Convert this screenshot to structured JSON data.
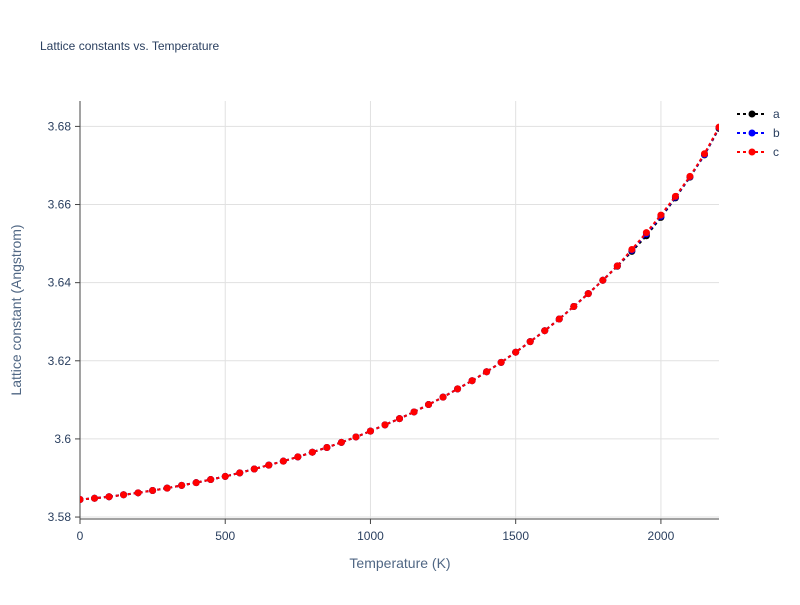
{
  "chart_data": {
    "type": "line",
    "title": "Lattice constants vs. Temperature",
    "xlabel": "Temperature (K)",
    "ylabel": "Lattice constant (Angstrom)",
    "xlim": [
      0,
      2200
    ],
    "ylim": [
      3.5795,
      3.6865
    ],
    "xticks": [
      0,
      500,
      1000,
      1500,
      2000
    ],
    "xtick_labels": [
      "0",
      "500",
      "1000",
      "1500",
      "2000"
    ],
    "yticks": [
      3.58,
      3.6,
      3.62,
      3.64,
      3.66,
      3.68
    ],
    "ytick_labels": [
      "3.58",
      "3.6",
      "3.62",
      "3.64",
      "3.66",
      "3.68"
    ],
    "grid": true,
    "legend_position": "top-right",
    "x": [
      0,
      50,
      100,
      150,
      200,
      250,
      300,
      350,
      400,
      450,
      500,
      550,
      600,
      650,
      700,
      750,
      800,
      850,
      900,
      950,
      1000,
      1050,
      1100,
      1150,
      1200,
      1250,
      1300,
      1350,
      1400,
      1450,
      1500,
      1550,
      1600,
      1650,
      1700,
      1750,
      1800,
      1850,
      1900,
      1950,
      2000,
      2050,
      2100,
      2150,
      2200
    ],
    "series": [
      {
        "name": "a",
        "color": "#000000",
        "values": [
          3.5845,
          3.5848,
          3.5852,
          3.5857,
          3.5862,
          3.5868,
          3.5874,
          3.5881,
          3.5888,
          3.5896,
          3.5904,
          3.5913,
          3.5923,
          3.5933,
          3.5943,
          3.5954,
          3.5966,
          3.5978,
          3.5991,
          3.6005,
          3.602,
          3.6036,
          3.6052,
          3.6069,
          3.6088,
          3.6107,
          3.6128,
          3.6149,
          3.6172,
          3.6196,
          3.6222,
          3.6249,
          3.6277,
          3.6307,
          3.6339,
          3.6372,
          3.6406,
          3.6442,
          3.648,
          3.652,
          3.6567,
          3.6617,
          3.667,
          3.6727,
          3.6795
        ]
      },
      {
        "name": "b",
        "color": "#0000ff",
        "values": [
          3.5845,
          3.5848,
          3.5852,
          3.5857,
          3.5862,
          3.5868,
          3.5874,
          3.5881,
          3.5888,
          3.5896,
          3.5904,
          3.5913,
          3.5923,
          3.5933,
          3.5943,
          3.5954,
          3.5966,
          3.5978,
          3.5991,
          3.6005,
          3.602,
          3.6036,
          3.6052,
          3.6069,
          3.6088,
          3.6107,
          3.6128,
          3.6149,
          3.6172,
          3.6196,
          3.6222,
          3.6249,
          3.6277,
          3.6307,
          3.6339,
          3.6372,
          3.6406,
          3.6443,
          3.6483,
          3.6525,
          3.657,
          3.6619,
          3.6671,
          3.6728,
          3.6797
        ]
      },
      {
        "name": "c",
        "color": "#ff0000",
        "values": [
          3.5845,
          3.5848,
          3.5852,
          3.5857,
          3.5862,
          3.5868,
          3.5874,
          3.5881,
          3.5888,
          3.5896,
          3.5904,
          3.5913,
          3.5923,
          3.5933,
          3.5943,
          3.5954,
          3.5966,
          3.5978,
          3.5991,
          3.6005,
          3.602,
          3.6036,
          3.6052,
          3.6069,
          3.6088,
          3.6107,
          3.6128,
          3.6149,
          3.6172,
          3.6196,
          3.6222,
          3.6249,
          3.6277,
          3.6307,
          3.6339,
          3.6372,
          3.6406,
          3.6443,
          3.6485,
          3.6528,
          3.6573,
          3.6621,
          3.6672,
          3.673,
          3.6798
        ]
      }
    ]
  }
}
